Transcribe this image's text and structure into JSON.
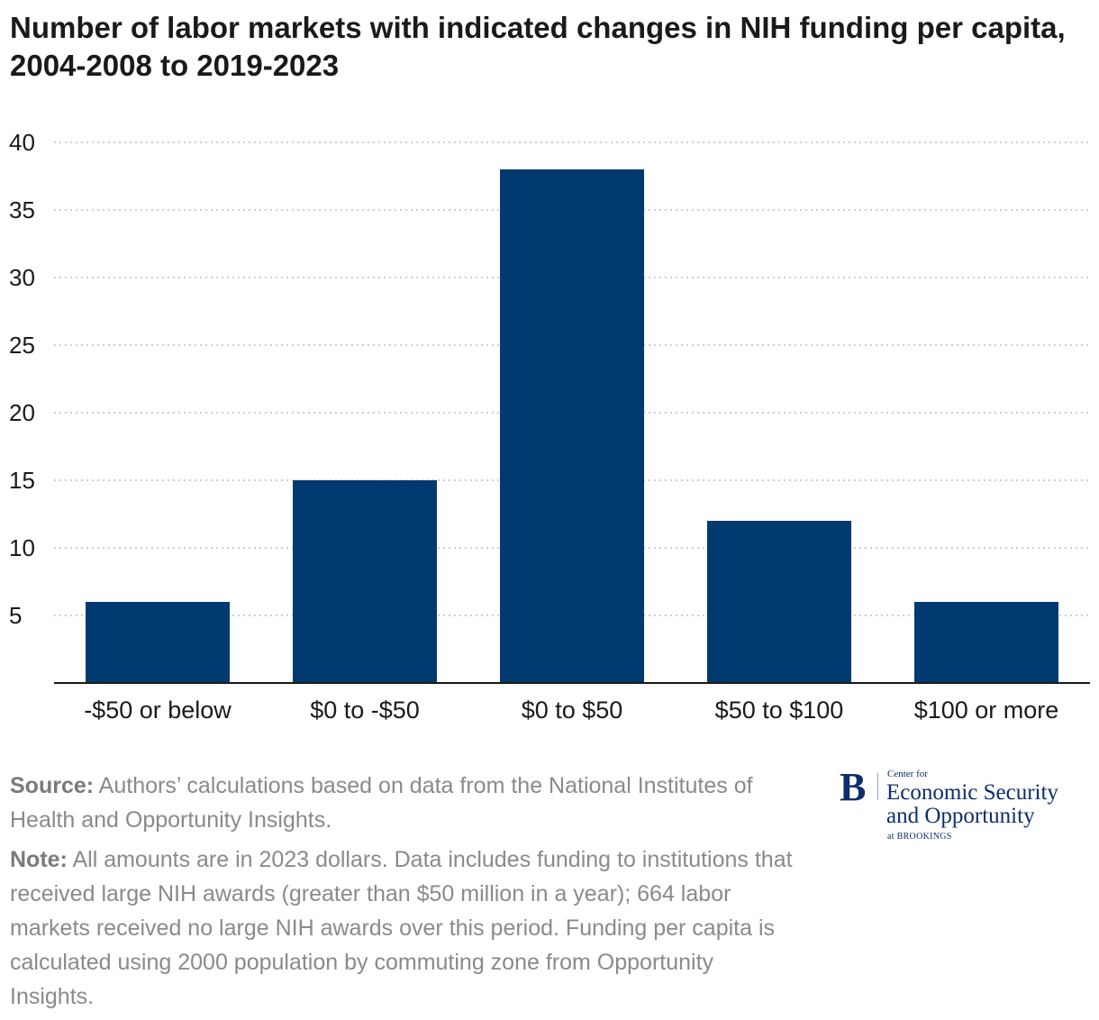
{
  "colors": {
    "bar": "#003a70",
    "grid": "#bdbdbd",
    "axis": "#1a1a1a",
    "footer_text": "#8a8a8a",
    "logo": "#0d2e6b"
  },
  "chart_data": {
    "type": "bar",
    "title": "Number of labor markets with indicated changes in NIH funding per capita, 2004-2008 to 2019-2023",
    "xlabel": "",
    "ylabel": "",
    "categories": [
      "-$50 or below",
      "$0 to -$50",
      "$0 to $50",
      "$50 to $100",
      "$100 or more"
    ],
    "values": [
      6,
      15,
      38,
      12,
      6
    ],
    "ylim": [
      0,
      40
    ],
    "yticks": [
      5,
      10,
      15,
      20,
      25,
      30,
      35,
      40
    ],
    "grid": true,
    "legend": "none"
  },
  "footer": {
    "source_label": "Source:",
    "source_text": "Authors’ calculations based on data from the National Institutes of Health and Opportunity Insights.",
    "note_label": "Note:",
    "note_text": "All amounts are in 2023 dollars. Data includes funding to institutions that received large NIH awards (greater than $50 million in a year); 664 labor markets received no large NIH awards over this period. Funding per capita is calculated using 2000 population by commuting zone from Opportunity Insights."
  },
  "logo": {
    "mark": "B",
    "line_small": "Center for",
    "line_big1": "Economic Security",
    "line_big2": "and Opportunity",
    "line_tiny": "at BROOKINGS"
  }
}
